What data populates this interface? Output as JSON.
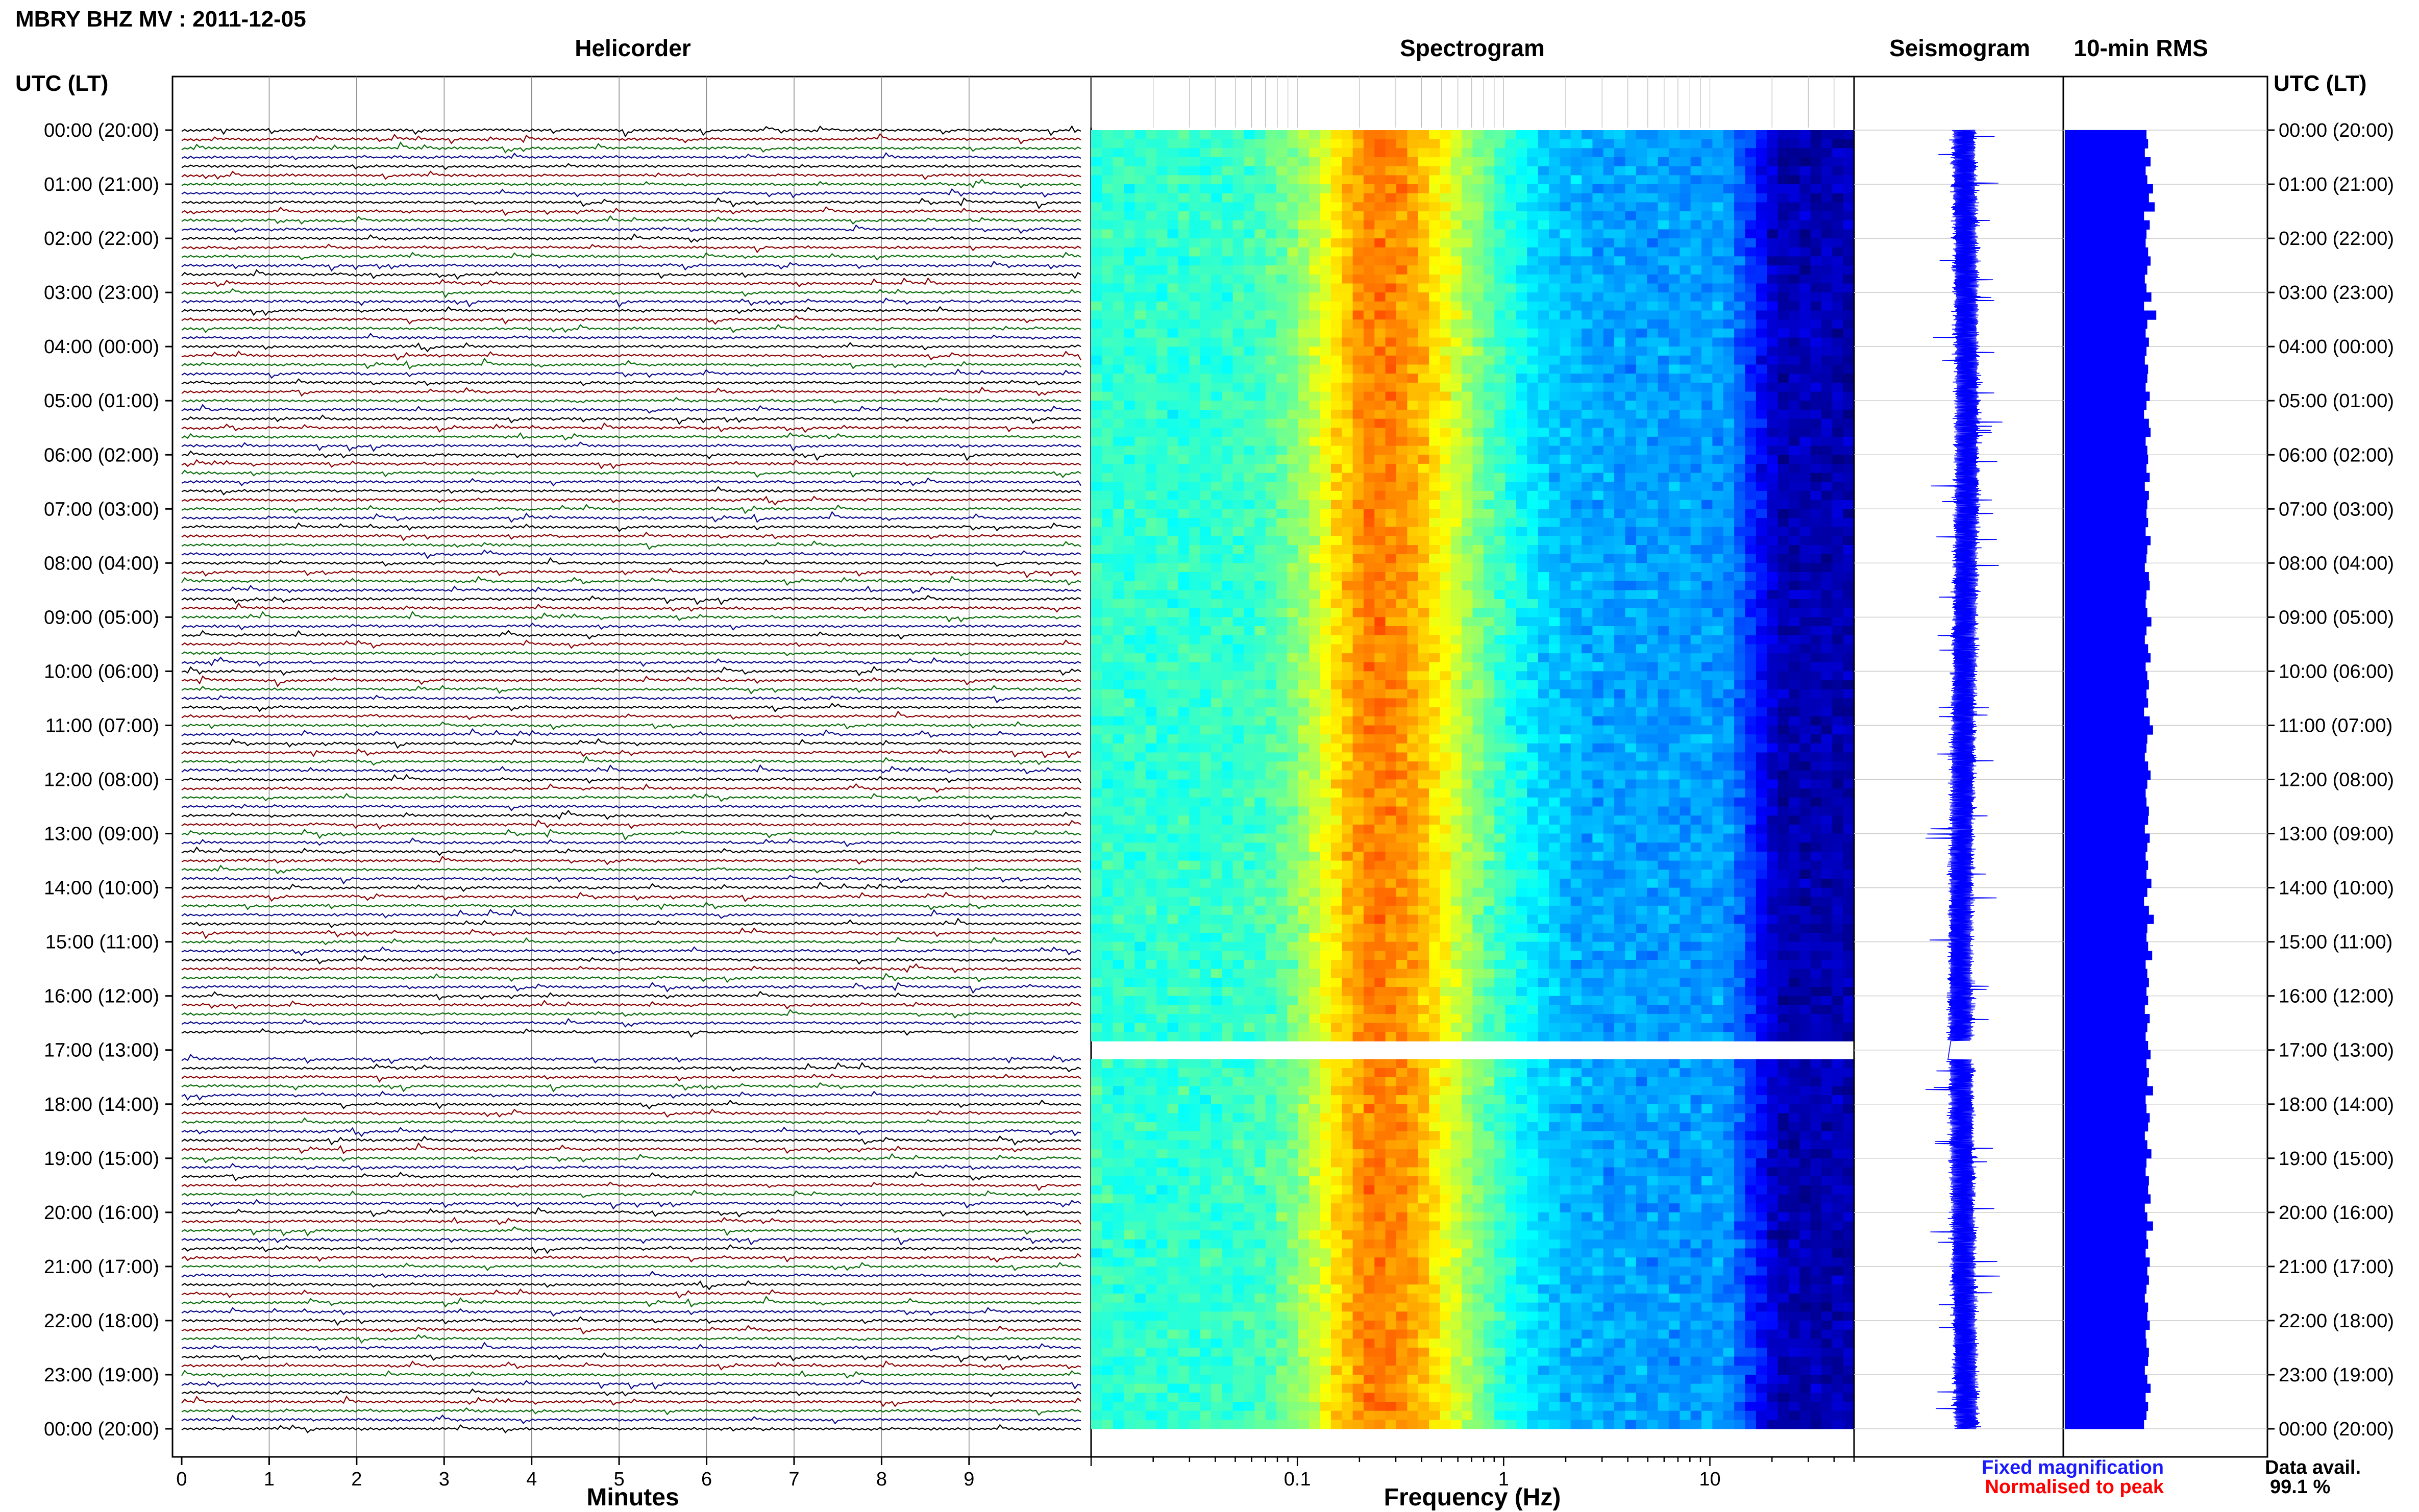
{
  "header": {
    "title": "MBRY BHZ MV : 2011-12-05",
    "time_label_left": "UTC (LT)",
    "time_label_right": "UTC (LT)"
  },
  "panels": {
    "helicorder": "Helicorder",
    "spectrogram": "Spectrogram",
    "seismogram": "Seismogram",
    "rms": "10-min RMS"
  },
  "time_ticks": [
    "00:00 (20:00)",
    "01:00 (21:00)",
    "02:00 (22:00)",
    "03:00 (23:00)",
    "04:00 (00:00)",
    "05:00 (01:00)",
    "06:00 (02:00)",
    "07:00 (03:00)",
    "08:00 (04:00)",
    "09:00 (05:00)",
    "10:00 (06:00)",
    "11:00 (07:00)",
    "12:00 (08:00)",
    "13:00 (09:00)",
    "14:00 (10:00)",
    "15:00 (11:00)",
    "16:00 (12:00)",
    "17:00 (13:00)",
    "18:00 (14:00)",
    "19:00 (15:00)",
    "20:00 (16:00)",
    "21:00 (17:00)",
    "22:00 (18:00)",
    "23:00 (19:00)",
    "00:00 (20:00)"
  ],
  "legend": {
    "fixed": "Fixed magnification",
    "fixed_color": "#1a1aff",
    "normalised": "Normalised to peak",
    "normalised_color": "#ff0000",
    "data_avail_label": "Data avail.",
    "data_avail_value": "99.1 %"
  },
  "colors": {
    "trace_cycle": [
      "#000000",
      "#8b0000",
      "#0a6e0a",
      "#0a0a8c"
    ],
    "rms_bar": "#0000ff",
    "seismogram": "#0000ff",
    "spectrogram_floor": "#000080"
  },
  "chart_data": [
    {
      "type": "line",
      "name": "helicorder",
      "title": "Helicorder",
      "xlabel": "Minutes",
      "xlim": [
        0,
        10
      ],
      "xticks": [
        "0",
        "1",
        "2",
        "3",
        "4",
        "5",
        "6",
        "7",
        "8",
        "9"
      ],
      "rows": 145,
      "row_minutes": 10,
      "gap_minutes": [
        [
          1010,
          1030
        ]
      ]
    },
    {
      "type": "heatmap",
      "name": "spectrogram",
      "title": "Spectrogram",
      "xlabel": "Frequency (Hz)",
      "xscale": "log",
      "xlim": [
        0.01,
        50
      ],
      "xticks": [
        "0.1",
        "1",
        "10"
      ],
      "peak_frequency_hz": 0.25,
      "gap_minutes": [
        [
          1010,
          1030
        ]
      ]
    },
    {
      "type": "line",
      "name": "seismogram",
      "title": "Seismogram"
    },
    {
      "type": "bar",
      "name": "rms",
      "title": "10-min RMS",
      "bins": 144,
      "values": [
        1.0,
        1.02,
        0.98,
        1.05,
        0.99,
        1.01,
        1.08,
        1.03,
        1.1,
        0.97,
        1.04,
        1.0,
        0.99,
        1.02,
        1.05,
        1.01,
        0.98,
        1.0,
        1.06,
        0.97,
        1.12,
        1.01,
        0.99,
        1.03,
        1.0,
        0.98,
        1.02,
        1.01,
        0.99,
        1.04,
        1.0,
        0.97,
        1.03,
        1.05,
        0.99,
        1.01,
        1.02,
        1.0,
        1.04,
        0.98,
        1.03,
        1.01,
        1.0,
        1.02,
        0.99,
        1.05,
        1.01,
        1.0,
        0.98,
        1.03,
        1.04,
        1.0,
        0.99,
        1.01,
        1.06,
        1.0,
        0.98,
        1.02,
        1.05,
        0.99,
        1.01,
        1.03,
        1.0,
        1.02,
        0.97,
        1.04,
        1.08,
        1.01,
        1.0,
        0.98,
        1.02,
        1.05,
        1.01,
        0.99,
        1.0,
        1.03,
        1.02,
        0.98,
        1.04,
        1.01,
        0.99,
        1.02,
        1.0,
        1.06,
        1.01,
        0.97,
        1.03,
        1.09,
        1.01,
        1.0,
        1.02,
        1.07,
        0.99,
        1.01,
        1.03,
        1.0,
        1.02,
        0.98,
        1.04,
        1.01,
        0.99,
        1.02,
        1.05,
        1.0,
        1.03,
        1.01,
        1.08,
        0.99,
        1.0,
        1.04,
        1.02,
        0.98,
        1.01,
        1.06,
        1.0,
        0.99,
        1.03,
        1.02,
        1.05,
        0.98,
        1.01,
        1.08,
        1.0,
        1.02,
        0.99,
        1.04,
        1.01,
        1.03,
        1.0,
        0.98,
        1.02,
        1.01,
        1.04,
        0.99,
        1.0,
        1.03,
        1.02,
        0.98,
        1.01,
        1.05,
        0.99,
        1.02,
        1.0,
        0.97
      ]
    }
  ]
}
